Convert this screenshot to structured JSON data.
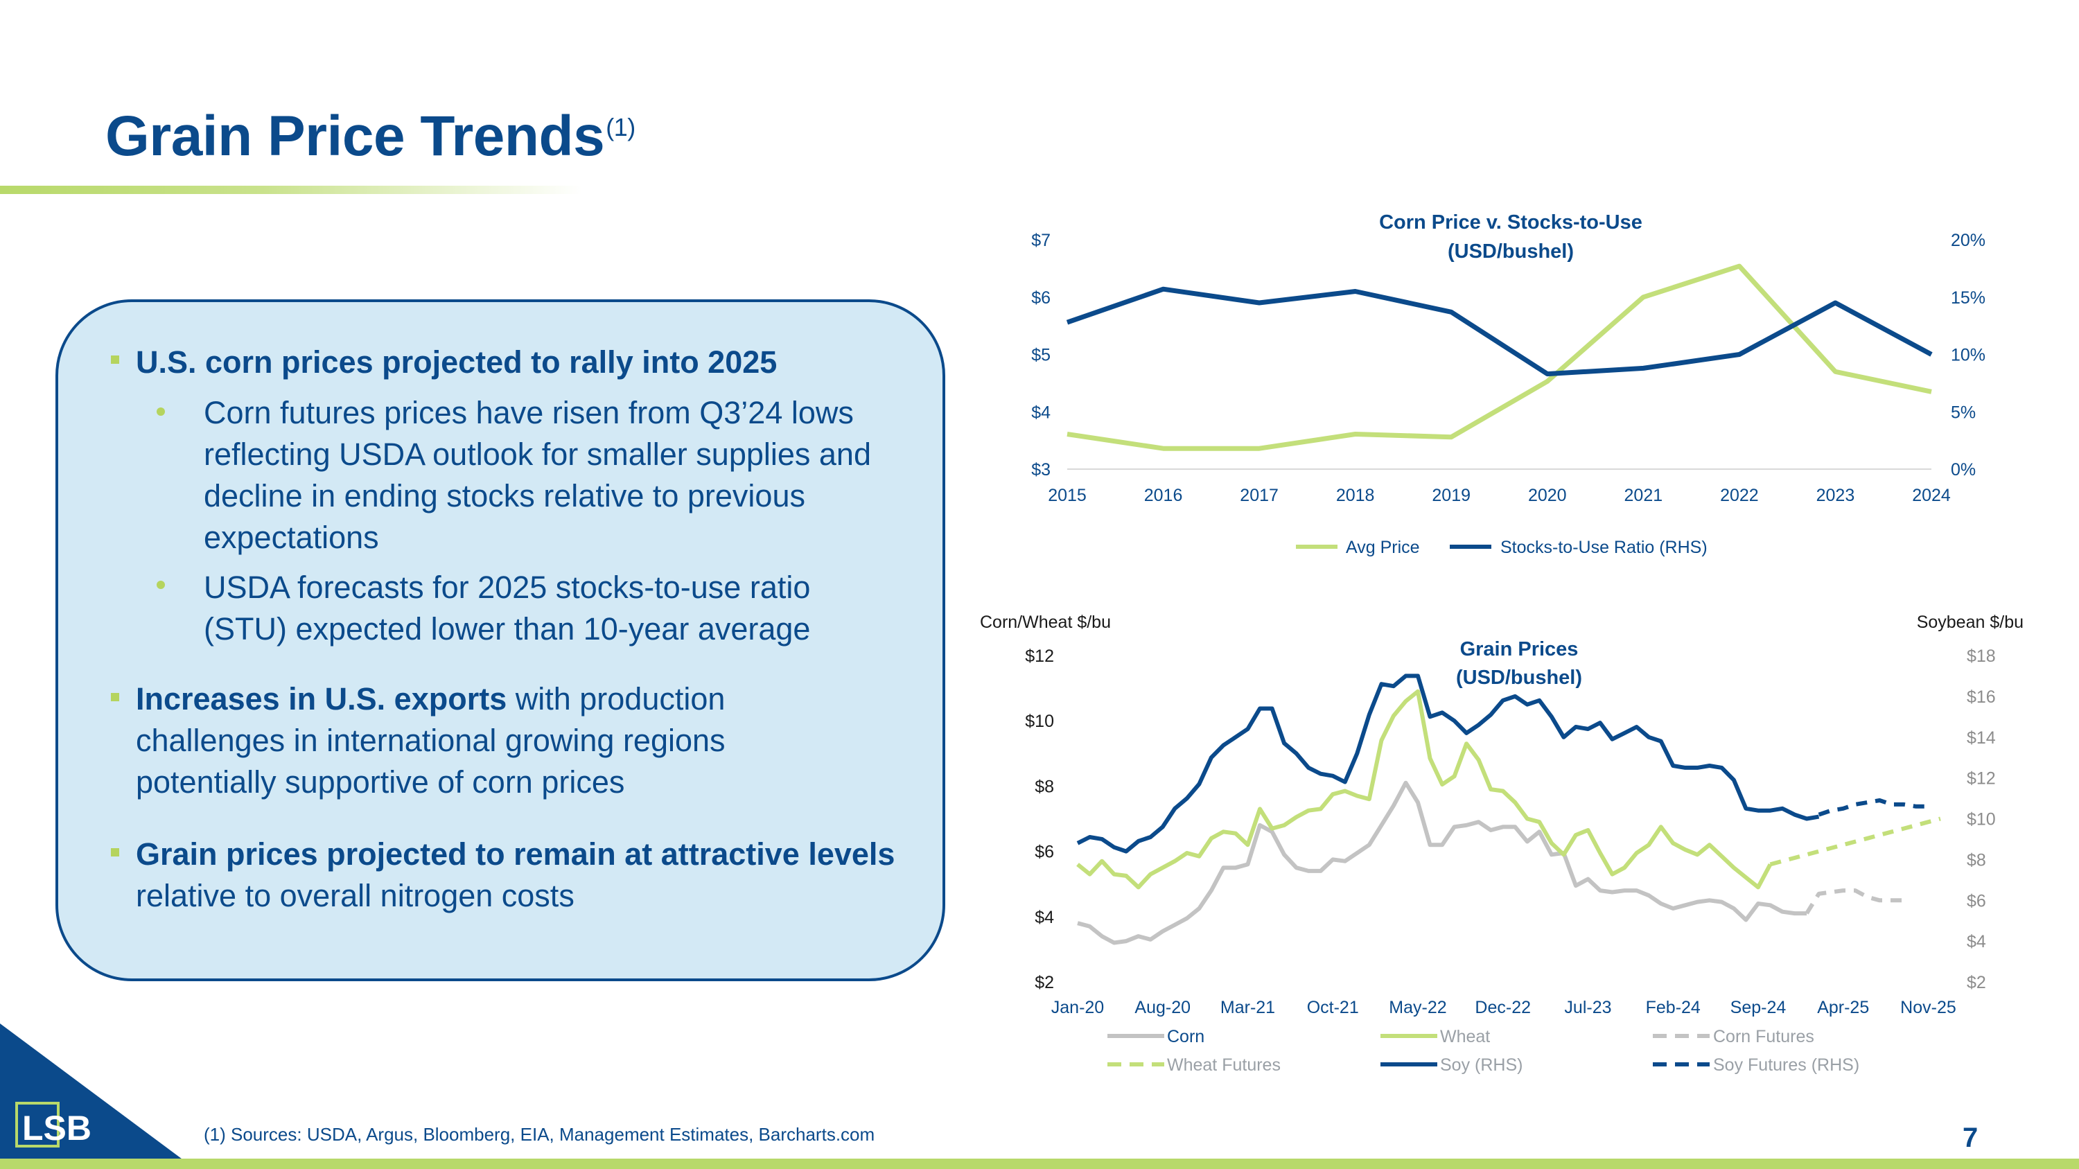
{
  "slide": {
    "title": "Grain Price Trends",
    "title_note": "(1)",
    "footnote": "(1)   Sources: USDA, Argus, Bloomberg, EIA, Management Estimates, Barcharts.com",
    "page_number": "7",
    "logo_text": "LSB"
  },
  "colors": {
    "navy": "#0b4a8b",
    "green": "#b8d96a",
    "gray": "#c3c3c3",
    "callout_bg": "#d3e9f5"
  },
  "bullets": {
    "b1": {
      "text": "U.S. corn prices projected to rally into 2025",
      "subs": [
        "Corn futures prices have risen from Q3’24 lows reflecting USDA outlook for smaller supplies and decline in ending stocks relative to previous expectations",
        "USDA forecasts for 2025 stocks-to-use ratio (STU) expected lower than 10-year average"
      ]
    },
    "b2": {
      "bold": "Increases in U.S. exports",
      "rest": " with production challenges in international growing regions potentially supportive of corn prices"
    },
    "b3": {
      "bold": "Grain prices projected to remain at attractive levels",
      "rest": " relative to overall nitrogen costs"
    }
  },
  "chart_data": [
    {
      "type": "line",
      "title": "Corn Price v. Stocks-to-Use (USD/bushel)",
      "title_lines": [
        "Corn Price v. Stocks-to-Use",
        "(USD/bushel)"
      ],
      "x": [
        "2015",
        "2016",
        "2017",
        "2018",
        "2019",
        "2020",
        "2021",
        "2022",
        "2023",
        "2024"
      ],
      "y_left": {
        "ticks": [
          "$3",
          "$4",
          "$5",
          "$6",
          "$7"
        ],
        "range": [
          3,
          7
        ]
      },
      "y_right": {
        "ticks": [
          "0%",
          "5%",
          "10%",
          "15%",
          "20%"
        ],
        "range": [
          0,
          20
        ]
      },
      "series": [
        {
          "name": "Avg Price",
          "axis": "left",
          "color": "#c3df7a",
          "values": [
            3.61,
            3.36,
            3.36,
            3.61,
            3.56,
            4.53,
            6.0,
            6.54,
            4.7,
            4.35
          ]
        },
        {
          "name": "Stocks-to-Use Ratio (RHS)",
          "axis": "right",
          "color": "#0b4a8b",
          "values": [
            12.8,
            15.7,
            14.5,
            15.5,
            13.7,
            8.3,
            8.8,
            10.0,
            14.5,
            10.0
          ]
        }
      ],
      "legend": [
        "Avg Price",
        "Stocks-to-Use Ratio (RHS)"
      ]
    },
    {
      "type": "line",
      "title": "Grain Prices (USD/bushel)",
      "title_lines": [
        "Grain Prices",
        "(USD/bushel)"
      ],
      "left_axis_label": "Corn/Wheat $/bu",
      "right_axis_label": "Soybean $/bu",
      "x_ticks": [
        "Jan-20",
        "Aug-20",
        "Mar-21",
        "Oct-21",
        "May-22",
        "Dec-22",
        "Jul-23",
        "Feb-24",
        "Sep-24",
        "Apr-25",
        "Nov-25"
      ],
      "x_tick_months": [
        0,
        7,
        14,
        21,
        28,
        35,
        42,
        49,
        56,
        63,
        70
      ],
      "x_range_months": [
        0,
        71
      ],
      "y_left": {
        "ticks": [
          "$2",
          "$4",
          "$6",
          "$8",
          "$10",
          "$12"
        ],
        "range": [
          2,
          12
        ]
      },
      "y_right": {
        "ticks": [
          "$2",
          "$4",
          "$6",
          "$8",
          "$10",
          "$12",
          "$14",
          "$16",
          "$18"
        ],
        "range": [
          2,
          18
        ]
      },
      "series": [
        {
          "name": "Corn",
          "axis": "left",
          "style": "solid",
          "color": "#c3c3c3",
          "start_month": 0,
          "values": [
            3.8,
            3.7,
            3.4,
            3.2,
            3.25,
            3.4,
            3.3,
            3.55,
            3.75,
            3.95,
            4.25,
            4.8,
            5.5,
            5.5,
            5.6,
            6.8,
            6.6,
            5.9,
            5.5,
            5.4,
            5.4,
            5.75,
            5.7,
            5.95,
            6.2,
            6.8,
            7.4,
            8.1,
            7.5,
            6.2,
            6.2,
            6.75,
            6.8,
            6.9,
            6.65,
            6.75,
            6.75,
            6.3,
            6.6,
            5.9,
            5.95,
            4.95,
            5.15,
            4.8,
            4.75,
            4.8,
            4.8,
            4.65,
            4.4,
            4.25,
            4.35,
            4.45,
            4.5,
            4.45,
            4.25,
            3.9,
            4.4,
            4.35,
            4.15,
            4.1,
            4.1
          ]
        },
        {
          "name": "Wheat",
          "axis": "left",
          "style": "solid",
          "color": "#c3df7a",
          "start_month": 0,
          "values": [
            5.6,
            5.3,
            5.7,
            5.3,
            5.25,
            4.9,
            5.3,
            5.5,
            5.7,
            5.95,
            5.85,
            6.4,
            6.6,
            6.55,
            6.2,
            7.3,
            6.7,
            6.8,
            7.05,
            7.25,
            7.3,
            7.75,
            7.85,
            7.7,
            7.6,
            9.4,
            10.15,
            10.6,
            10.9,
            8.85,
            8.05,
            8.3,
            9.3,
            8.8,
            7.9,
            7.85,
            7.5,
            7.0,
            6.9,
            6.25,
            5.9,
            6.5,
            6.65,
            5.95,
            5.3,
            5.5,
            5.95,
            6.2,
            6.75,
            6.25,
            6.05,
            5.9,
            6.2,
            5.85,
            5.5,
            5.2,
            4.9,
            5.6
          ]
        },
        {
          "name": "Wheat Futures",
          "axis": "left",
          "style": "dashed",
          "color": "#c3df7a",
          "start_month": 57,
          "values": [
            5.6,
            5.7,
            5.8,
            5.9,
            6.0,
            6.1,
            6.2,
            6.3,
            6.4,
            6.5,
            6.6,
            6.7,
            6.8,
            6.9,
            7.0
          ]
        },
        {
          "name": "Corn Futures",
          "axis": "left",
          "style": "dashed",
          "color": "#c3c3c3",
          "start_month": 60,
          "values": [
            4.1,
            4.7,
            4.75,
            4.8,
            4.8,
            4.6,
            4.5,
            4.5,
            4.5
          ]
        },
        {
          "name": "Soy (RHS)",
          "axis": "right",
          "style": "solid",
          "color": "#0b4a8b",
          "start_month": 0,
          "values": [
            8.8,
            9.1,
            9.0,
            8.6,
            8.4,
            8.9,
            9.1,
            9.6,
            10.5,
            11.0,
            11.7,
            13.0,
            13.6,
            14.0,
            14.4,
            15.4,
            15.4,
            13.7,
            13.2,
            12.5,
            12.2,
            12.1,
            11.8,
            13.2,
            15.1,
            16.6,
            16.5,
            17.0,
            17.0,
            15.0,
            15.2,
            14.8,
            14.2,
            14.6,
            15.1,
            15.8,
            16.0,
            15.6,
            15.8,
            15.0,
            14.0,
            14.5,
            14.4,
            14.7,
            13.9,
            14.2,
            14.5,
            14.0,
            13.8,
            12.6,
            12.5,
            12.5,
            12.6,
            12.5,
            11.9,
            10.5,
            10.4,
            10.4,
            10.5,
            10.2,
            10.0,
            10.1
          ]
        },
        {
          "name": "Soy Futures (RHS)",
          "axis": "right",
          "style": "dashed",
          "color": "#0b4a8b",
          "start_month": 61,
          "values": [
            10.2,
            10.4,
            10.5,
            10.7,
            10.8,
            10.9,
            10.7,
            10.7,
            10.6,
            10.6
          ]
        }
      ],
      "legend": [
        "Corn",
        "Wheat",
        "Corn Futures",
        "Wheat Futures",
        "Soy (RHS)",
        "Soy Futures (RHS)"
      ]
    }
  ]
}
